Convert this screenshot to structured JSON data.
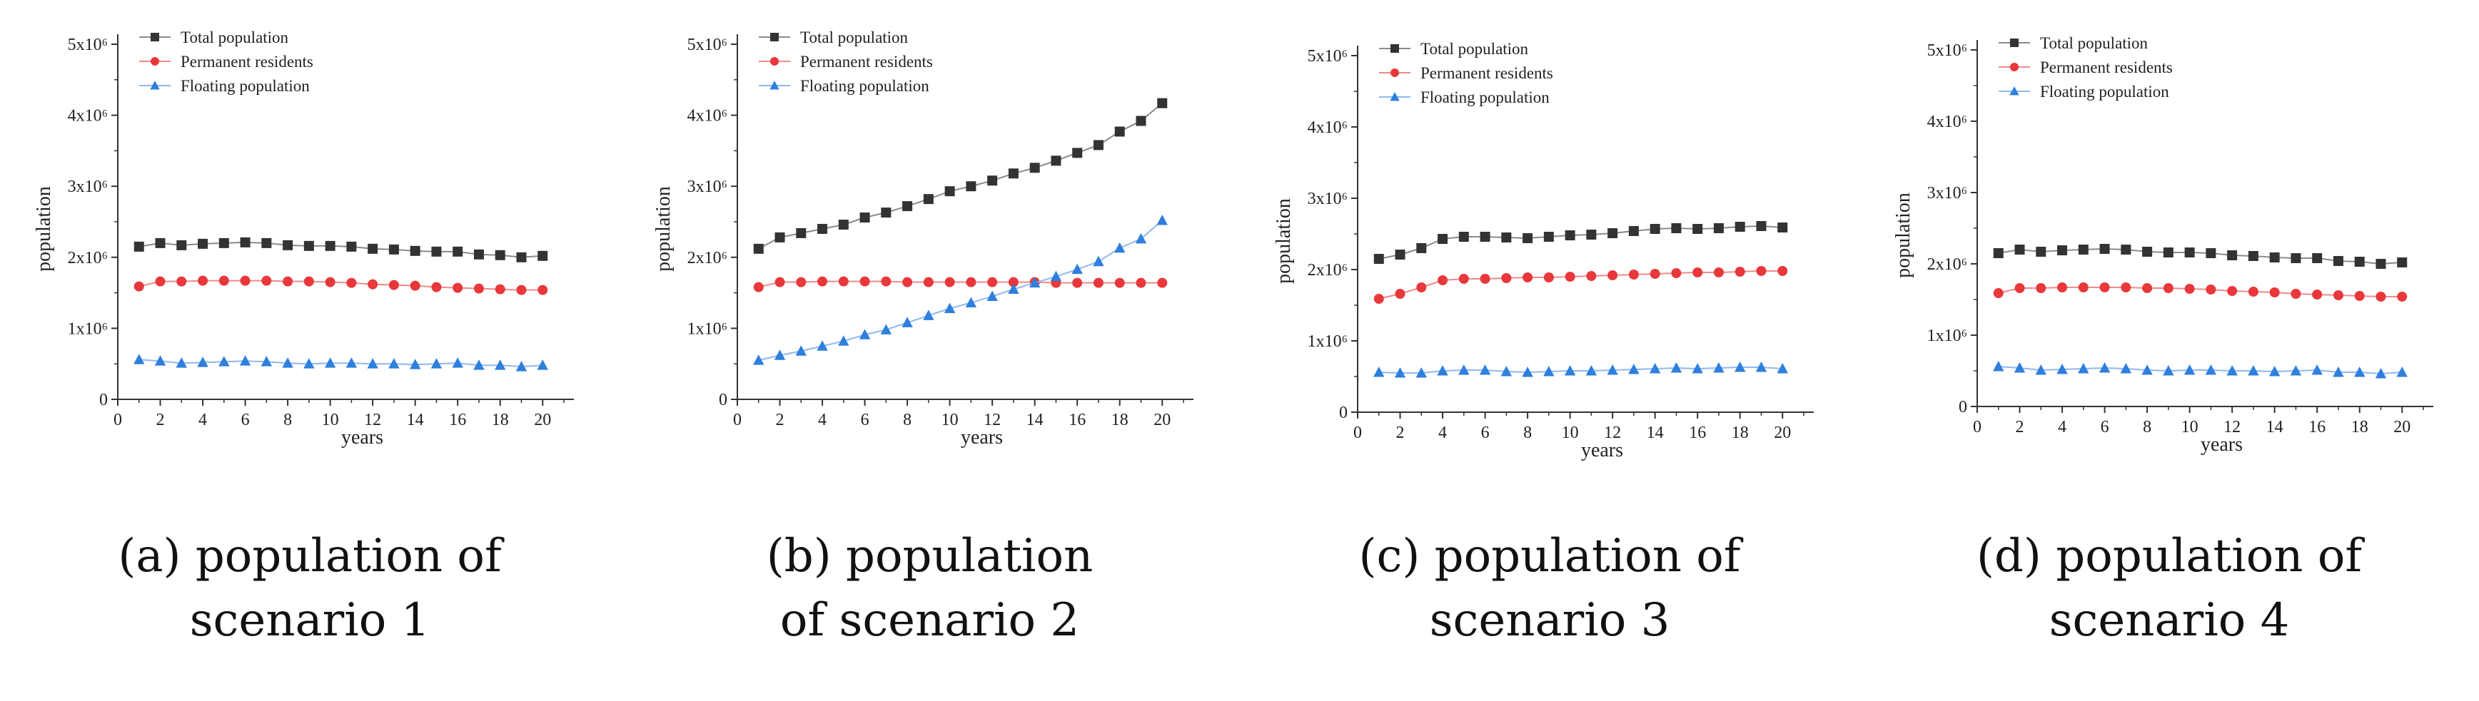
{
  "colors": {
    "total": "#333333",
    "permanent": "#e8383b",
    "floating": "#2f7fdd",
    "axis": "#333333",
    "total_line": "#8a8a8a",
    "permanent_line": "#f08a8a",
    "floating_line": "#8fb8ee"
  },
  "chart_data": [
    {
      "type": "line",
      "title": "",
      "xlabel": "years",
      "ylabel": "population",
      "xlim": [
        0,
        21
      ],
      "ylim": [
        0,
        5000000
      ],
      "grid": false,
      "legend_position": "top-left",
      "x_ticks": [
        "0",
        "2",
        "4",
        "6",
        "8",
        "10",
        "12",
        "14",
        "16",
        "18",
        "20"
      ],
      "y_ticks": [
        "0",
        "1x10⁶",
        "2x10⁶",
        "3x10⁶",
        "4x10⁶",
        "5x10⁶"
      ],
      "x": [
        1,
        2,
        3,
        4,
        5,
        6,
        7,
        8,
        9,
        10,
        11,
        12,
        13,
        14,
        15,
        16,
        17,
        18,
        19,
        20
      ],
      "series": [
        {
          "name": "Total population",
          "key": "total",
          "marker": "square",
          "values": [
            2150000,
            2200000,
            2170000,
            2190000,
            2200000,
            2210000,
            2200000,
            2170000,
            2160000,
            2160000,
            2150000,
            2120000,
            2110000,
            2090000,
            2080000,
            2080000,
            2040000,
            2030000,
            2000000,
            2020000
          ]
        },
        {
          "name": "Permanent residents",
          "key": "permanent",
          "marker": "circle",
          "values": [
            1590000,
            1660000,
            1660000,
            1670000,
            1670000,
            1670000,
            1670000,
            1660000,
            1660000,
            1650000,
            1640000,
            1620000,
            1610000,
            1600000,
            1580000,
            1570000,
            1560000,
            1550000,
            1540000,
            1540000
          ]
        },
        {
          "name": "Floating population",
          "key": "floating",
          "marker": "triangle",
          "values": [
            560000,
            540000,
            510000,
            520000,
            530000,
            540000,
            530000,
            510000,
            500000,
            510000,
            510000,
            500000,
            500000,
            490000,
            500000,
            510000,
            480000,
            480000,
            460000,
            480000
          ]
        }
      ],
      "caption": [
        "(a) population of",
        "scenario 1"
      ]
    },
    {
      "type": "line",
      "title": "",
      "xlabel": "years",
      "ylabel": "population",
      "xlim": [
        0,
        21
      ],
      "ylim": [
        0,
        5000000
      ],
      "grid": false,
      "legend_position": "top-left",
      "x_ticks": [
        "0",
        "2",
        "4",
        "6",
        "8",
        "10",
        "12",
        "14",
        "16",
        "18",
        "20"
      ],
      "y_ticks": [
        "0",
        "1x10⁶",
        "2x10⁶",
        "3x10⁶",
        "4x10⁶",
        "5x10⁶"
      ],
      "x": [
        1,
        2,
        3,
        4,
        5,
        6,
        7,
        8,
        9,
        10,
        11,
        12,
        13,
        14,
        15,
        16,
        17,
        18,
        19,
        20
      ],
      "series": [
        {
          "name": "Total population",
          "key": "total",
          "marker": "square",
          "values": [
            2120000,
            2280000,
            2340000,
            2400000,
            2460000,
            2560000,
            2630000,
            2720000,
            2820000,
            2930000,
            3000000,
            3080000,
            3180000,
            3260000,
            3360000,
            3470000,
            3580000,
            3770000,
            3920000,
            4170000
          ]
        },
        {
          "name": "Permanent residents",
          "key": "permanent",
          "marker": "circle",
          "values": [
            1580000,
            1650000,
            1650000,
            1660000,
            1660000,
            1660000,
            1660000,
            1650000,
            1650000,
            1650000,
            1650000,
            1650000,
            1650000,
            1650000,
            1640000,
            1640000,
            1640000,
            1640000,
            1640000,
            1640000
          ]
        },
        {
          "name": "Floating population",
          "key": "floating",
          "marker": "triangle",
          "values": [
            550000,
            620000,
            680000,
            750000,
            820000,
            910000,
            980000,
            1080000,
            1180000,
            1280000,
            1360000,
            1450000,
            1550000,
            1640000,
            1730000,
            1830000,
            1940000,
            2130000,
            2260000,
            2520000
          ]
        }
      ],
      "caption": [
        "(b) population",
        "of scenario 2"
      ]
    },
    {
      "type": "line",
      "title": "",
      "xlabel": "years",
      "ylabel": "population",
      "xlim": [
        0,
        21
      ],
      "ylim": [
        0,
        5000000
      ],
      "grid": false,
      "legend_position": "top-left",
      "x_ticks": [
        "0",
        "2",
        "4",
        "6",
        "8",
        "10",
        "12",
        "14",
        "16",
        "18",
        "20"
      ],
      "y_ticks": [
        "0",
        "1x10⁶",
        "2x10⁶",
        "3x10⁶",
        "4x10⁶",
        "5x10⁶"
      ],
      "x": [
        1,
        2,
        3,
        4,
        5,
        6,
        7,
        8,
        9,
        10,
        11,
        12,
        13,
        14,
        15,
        16,
        17,
        18,
        19,
        20
      ],
      "series": [
        {
          "name": "Total population",
          "key": "total",
          "marker": "square",
          "values": [
            2150000,
            2210000,
            2300000,
            2430000,
            2460000,
            2460000,
            2450000,
            2440000,
            2460000,
            2480000,
            2490000,
            2510000,
            2540000,
            2570000,
            2580000,
            2570000,
            2580000,
            2600000,
            2610000,
            2590000
          ]
        },
        {
          "name": "Permanent residents",
          "key": "permanent",
          "marker": "circle",
          "values": [
            1590000,
            1660000,
            1750000,
            1850000,
            1870000,
            1870000,
            1880000,
            1890000,
            1890000,
            1900000,
            1910000,
            1920000,
            1930000,
            1940000,
            1950000,
            1960000,
            1960000,
            1970000,
            1980000,
            1980000
          ]
        },
        {
          "name": "Floating population",
          "key": "floating",
          "marker": "triangle",
          "values": [
            560000,
            550000,
            550000,
            580000,
            590000,
            590000,
            570000,
            560000,
            570000,
            580000,
            580000,
            590000,
            600000,
            610000,
            620000,
            610000,
            620000,
            630000,
            630000,
            610000
          ]
        }
      ],
      "caption": [
        "(c) population of",
        "scenario 3"
      ]
    },
    {
      "type": "line",
      "title": "",
      "xlabel": "years",
      "ylabel": "population",
      "xlim": [
        0,
        21
      ],
      "ylim": [
        0,
        5000000
      ],
      "grid": false,
      "legend_position": "top-left",
      "x_ticks": [
        "0",
        "2",
        "4",
        "6",
        "8",
        "10",
        "12",
        "14",
        "16",
        "18",
        "20"
      ],
      "y_ticks": [
        "0",
        "1x10⁶",
        "2x10⁶",
        "3x10⁶",
        "4x10⁶",
        "5x10⁶"
      ],
      "x": [
        1,
        2,
        3,
        4,
        5,
        6,
        7,
        8,
        9,
        10,
        11,
        12,
        13,
        14,
        15,
        16,
        17,
        18,
        19,
        20
      ],
      "series": [
        {
          "name": "Total population",
          "key": "total",
          "marker": "square",
          "values": [
            2150000,
            2200000,
            2170000,
            2190000,
            2200000,
            2210000,
            2200000,
            2170000,
            2160000,
            2160000,
            2150000,
            2120000,
            2110000,
            2090000,
            2080000,
            2080000,
            2040000,
            2030000,
            2000000,
            2020000
          ]
        },
        {
          "name": "Permanent residents",
          "key": "permanent",
          "marker": "circle",
          "values": [
            1590000,
            1660000,
            1660000,
            1670000,
            1670000,
            1670000,
            1670000,
            1660000,
            1660000,
            1650000,
            1640000,
            1620000,
            1610000,
            1600000,
            1580000,
            1570000,
            1560000,
            1550000,
            1540000,
            1540000
          ]
        },
        {
          "name": "Floating population",
          "key": "floating",
          "marker": "triangle",
          "values": [
            560000,
            540000,
            510000,
            520000,
            530000,
            540000,
            530000,
            510000,
            500000,
            510000,
            510000,
            500000,
            500000,
            490000,
            500000,
            510000,
            480000,
            480000,
            460000,
            480000
          ]
        }
      ],
      "caption": [
        "(d) population of",
        "scenario 4"
      ]
    }
  ]
}
